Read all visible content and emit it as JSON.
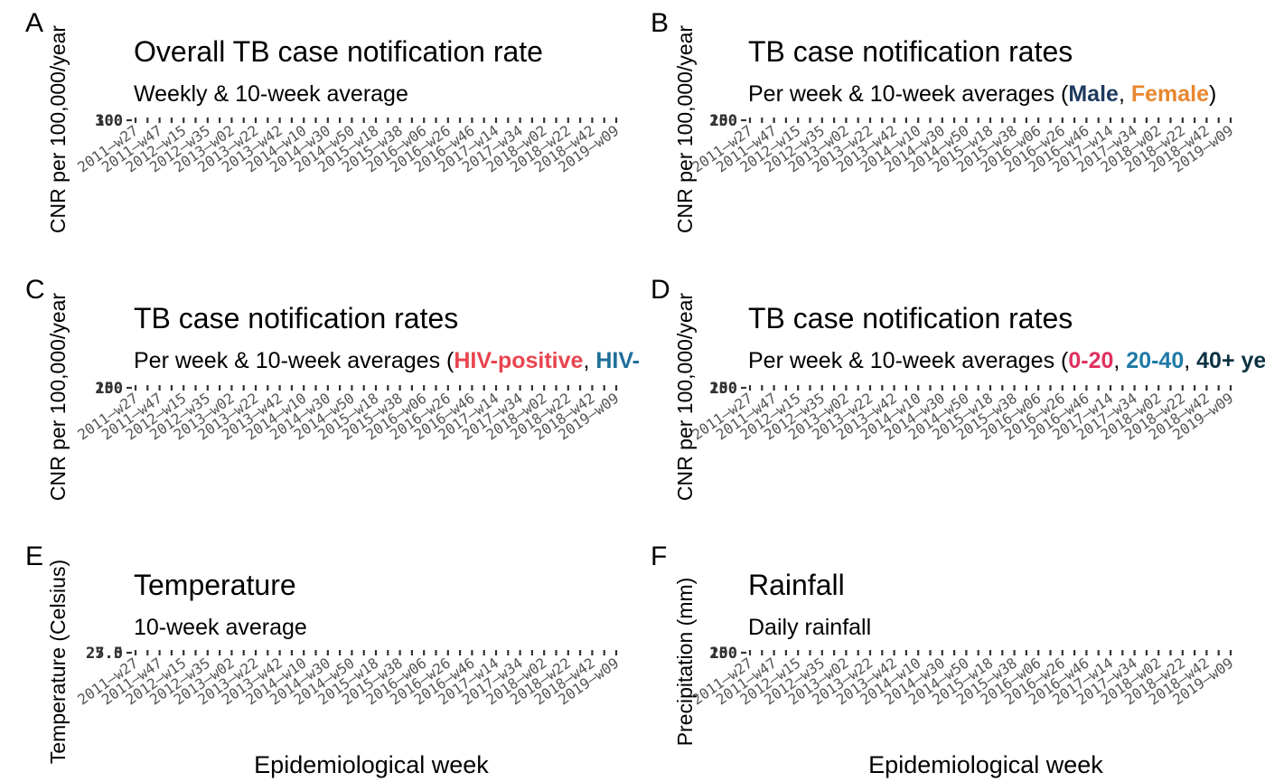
{
  "chart_data": [
    {
      "panel": "A",
      "type": "line",
      "title": "Overall TB case notification rate",
      "subtitle": "Weekly & 10-week average",
      "ylabel": "CNR per 100,000/year",
      "xlabel": "",
      "yticks": [
        "300",
        "100"
      ],
      "x_categories": [
        "2011–w27",
        "2011–w47",
        "2012–w15",
        "2012–w35",
        "2013–w02",
        "2013–w22",
        "2013–w42",
        "2014–w10",
        "2014–w30",
        "2014–w50",
        "2015–w18",
        "2015–w38",
        "2016–w06",
        "2016–w26",
        "2016–w46",
        "2017–w14",
        "2017–w34",
        "2018–w02",
        "2018–w22",
        "2018–w42",
        "2019–w09"
      ],
      "series": []
    },
    {
      "panel": "B",
      "type": "line",
      "title": "TB case notification rates",
      "subtitle_parts": [
        {
          "text": "Per week & 10-week averages (",
          "color": "#000000",
          "bold": false
        },
        {
          "text": "Male",
          "color": "#1d3a5f",
          "bold": true
        },
        {
          "text": ", ",
          "color": "#000000",
          "bold": false
        },
        {
          "text": "Female",
          "color": "#e8862f",
          "bold": true
        },
        {
          "text": ")",
          "color": "#000000",
          "bold": false
        }
      ],
      "ylabel": "CNR per 100,000/year",
      "xlabel": "",
      "yticks": [
        "200",
        "150"
      ],
      "x_categories": [
        "2011–w27",
        "2011–w47",
        "2012–w15",
        "2012–w35",
        "2013–w02",
        "2013–w22",
        "2013–w42",
        "2014–w10",
        "2014–w30",
        "2014–w50",
        "2015–w18",
        "2015–w38",
        "2016–w06",
        "2016–w26",
        "2016–w46",
        "2017–w14",
        "2017–w34",
        "2018–w02",
        "2018–w22",
        "2018–w42",
        "2019–w09"
      ],
      "series": []
    },
    {
      "panel": "C",
      "type": "line",
      "title": "TB case notification rates",
      "subtitle_parts": [
        {
          "text": "Per week & 10-week averages (",
          "color": "#000000",
          "bold": false
        },
        {
          "text": "HIV-positive",
          "color": "#e8454f",
          "bold": true
        },
        {
          "text": ", ",
          "color": "#000000",
          "bold": false
        },
        {
          "text": "HIV-n",
          "color": "#1f6f9a",
          "bold": true
        }
      ],
      "ylabel": "CNR per 100,000/year",
      "xlabel": "",
      "yticks": [
        "200",
        "150"
      ],
      "x_categories": [
        "2011–w27",
        "2011–w47",
        "2012–w15",
        "2012–w35",
        "2013–w02",
        "2013–w22",
        "2013–w42",
        "2014–w10",
        "2014–w30",
        "2014–w50",
        "2015–w18",
        "2015–w38",
        "2016–w06",
        "2016–w26",
        "2016–w46",
        "2017–w14",
        "2017–w34",
        "2018–w02",
        "2018–w22",
        "2018–w42",
        "2019–w09"
      ],
      "series": []
    },
    {
      "panel": "D",
      "type": "line",
      "title": "TB case notification rates",
      "subtitle_parts": [
        {
          "text": "Per week & 10-week averages (",
          "color": "#000000",
          "bold": false
        },
        {
          "text": "0-20",
          "color": "#e0315e",
          "bold": true
        },
        {
          "text": ", ",
          "color": "#000000",
          "bold": false
        },
        {
          "text": "20-40",
          "color": "#1f7ba6",
          "bold": true
        },
        {
          "text": ", ",
          "color": "#000000",
          "bold": false
        },
        {
          "text": "40+ ye",
          "color": "#0d3344",
          "bold": true
        }
      ],
      "ylabel": "CNR per 100,000/year",
      "xlabel": "",
      "yticks": [
        "200",
        "150"
      ],
      "x_categories": [
        "2011–w27",
        "2011–w47",
        "2012–w15",
        "2012–w35",
        "2013–w02",
        "2013–w22",
        "2013–w42",
        "2014–w10",
        "2014–w30",
        "2014–w50",
        "2015–w18",
        "2015–w38",
        "2016–w06",
        "2016–w26",
        "2016–w46",
        "2017–w14",
        "2017–w34",
        "2018–w02",
        "2018–w22",
        "2018–w42",
        "2019–w09"
      ],
      "series": []
    },
    {
      "panel": "E",
      "type": "line",
      "title": "Temperature",
      "subtitle": "10-week average",
      "ylabel": "Temperature (Celsius)",
      "xlabel": "Epidemiological week",
      "yticks": [
        "25.0",
        "27.5"
      ],
      "x_categories": [
        "2011–w27",
        "2011–w47",
        "2012–w15",
        "2012–w35",
        "2013–w02",
        "2013–w22",
        "2013–w42",
        "2014–w10",
        "2014–w30",
        "2014–w50",
        "2015–w18",
        "2015–w38",
        "2016–w06",
        "2016–w26",
        "2016–w46",
        "2017–w14",
        "2017–w34",
        "2018–w02",
        "2018–w22",
        "2018–w42",
        "2019–w09"
      ],
      "series": []
    },
    {
      "panel": "F",
      "type": "line",
      "title": "Rainfall",
      "subtitle": "Daily rainfall",
      "ylabel": "Precipitation (mm)",
      "xlabel": "Epidemiological week",
      "yticks": [
        "200",
        "150"
      ],
      "x_categories": [
        "2011–w27",
        "2011–w47",
        "2012–w15",
        "2012–w35",
        "2013–w02",
        "2013–w22",
        "2013–w42",
        "2014–w10",
        "2014–w30",
        "2014–w50",
        "2015–w18",
        "2015–w38",
        "2016–w06",
        "2016–w26",
        "2016–w46",
        "2017–w14",
        "2017–w34",
        "2018–w02",
        "2018–w22",
        "2018–w42",
        "2019–w09"
      ],
      "series": []
    }
  ]
}
